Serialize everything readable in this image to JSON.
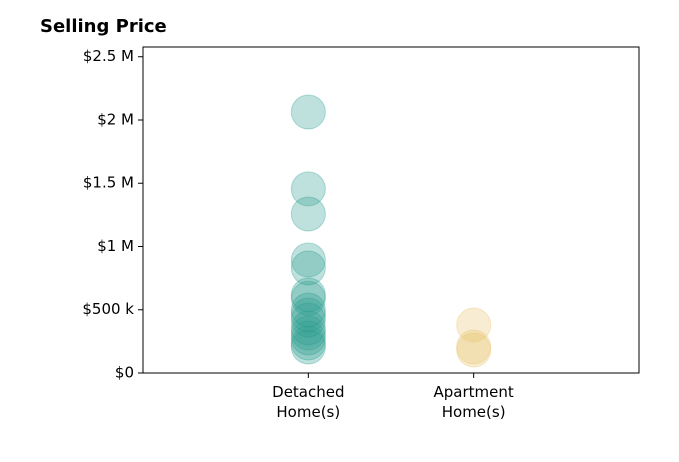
{
  "chart_data": {
    "type": "strip",
    "title": "Selling Price",
    "categories": [
      "Detached\nHome(s)",
      "Apartment\nHome(s)"
    ],
    "colors": [
      "#2a9d8f",
      "#e9c46a"
    ],
    "values": [
      [
        2063000,
        1455000,
        1257000,
        893000,
        830000,
        617000,
        590000,
        498000,
        458000,
        419000,
        356000,
        316000,
        277000,
        237000,
        206000
      ],
      [
        379000,
        206000,
        182000
      ]
    ],
    "ylim": [
      0,
      2577000
    ],
    "yticks": [
      {
        "value": 0,
        "label": "$0"
      },
      {
        "value": 500000,
        "label": "$500 k"
      },
      {
        "value": 1000000,
        "label": "$1 M"
      },
      {
        "value": 1500000,
        "label": "$1.5 M"
      },
      {
        "value": 2000000,
        "label": "$2 M"
      },
      {
        "value": 2500000,
        "label": "$2.5 M"
      }
    ]
  }
}
